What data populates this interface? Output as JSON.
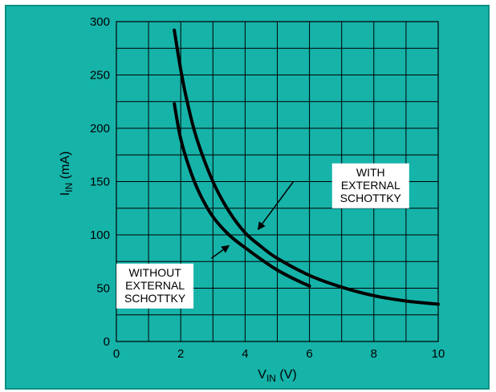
{
  "chart_data": {
    "type": "line",
    "x_axis": {
      "label_main": "V",
      "label_sub": "IN",
      "label_unit": " (V)",
      "range": [
        0,
        10
      ],
      "ticks": [
        0,
        2,
        4,
        6,
        8,
        10
      ],
      "grid_step": 1
    },
    "y_axis": {
      "label_main": "I",
      "label_sub": "IN",
      "label_unit": " (mA)",
      "range": [
        0,
        300
      ],
      "ticks": [
        0,
        50,
        100,
        150,
        200,
        250,
        300
      ],
      "grid_step": 25
    },
    "grid": true,
    "series": [
      {
        "name": "WITH EXTERNAL SCHOTTKY",
        "x": [
          1.8,
          2.0,
          2.2,
          2.5,
          3.0,
          3.5,
          4.0,
          4.5,
          5.0,
          6.0,
          7.0,
          8.0,
          9.0,
          10.0
        ],
        "y": [
          292,
          255,
          225,
          190,
          150,
          122,
          102,
          89,
          78,
          62,
          51,
          43,
          38,
          35
        ]
      },
      {
        "name": "WITHOUT EXTERNAL SCHOTTKY",
        "x": [
          1.8,
          2.0,
          2.3,
          2.6,
          3.0,
          3.5,
          4.0,
          4.5,
          5.0,
          5.5,
          6.0
        ],
        "y": [
          223,
          190,
          160,
          138,
          117,
          100,
          88,
          77,
          67,
          59,
          52
        ]
      }
    ],
    "annotations": [
      {
        "lines": [
          "WITH",
          "EXTERNAL",
          "SCHOTTKY"
        ],
        "box_at": [
          7.9,
          146
        ],
        "arrow_from": [
          5.5,
          150
        ],
        "arrow_to": [
          4.4,
          105
        ]
      },
      {
        "lines": [
          "WITHOUT",
          "EXTERNAL",
          "SCHOTTKY"
        ],
        "box_at": [
          1.2,
          52
        ],
        "arrow_from": [
          2.95,
          78
        ],
        "arrow_to": [
          3.5,
          90
        ]
      }
    ],
    "colors": {
      "background": "#16b3a9",
      "plot_fill": "#16b3a9",
      "grid": "#000000",
      "line": "#000000",
      "label_box": "#ffffff"
    }
  }
}
